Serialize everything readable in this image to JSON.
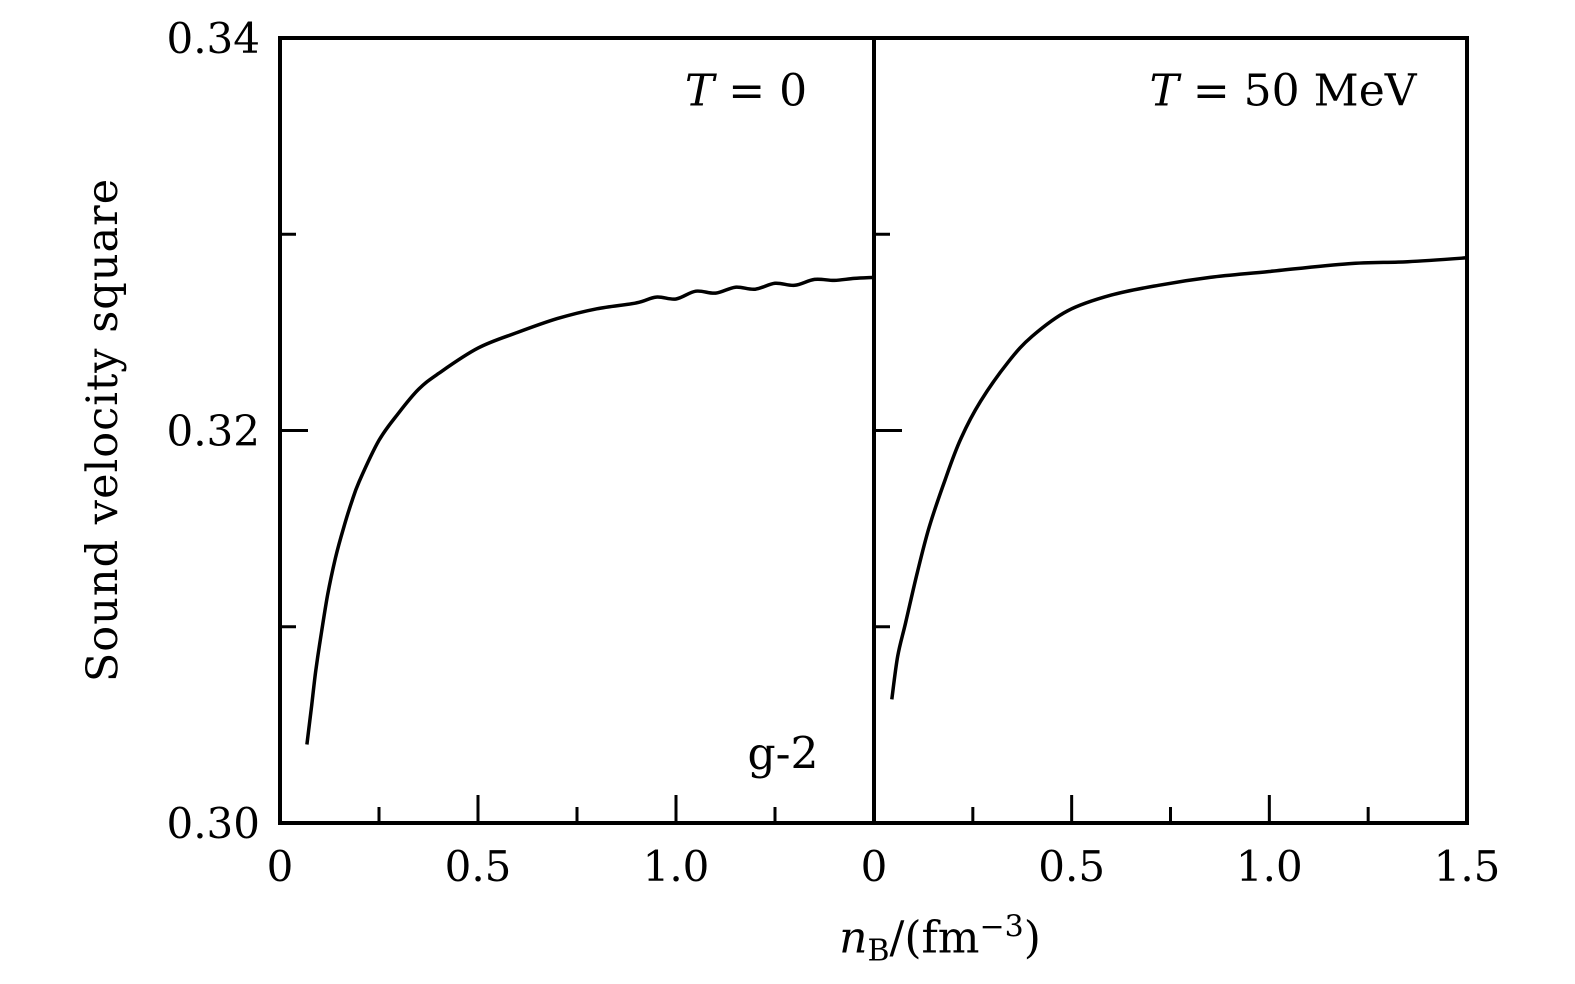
{
  "figure": {
    "background_color": "#ffffff",
    "line_color": "#000000",
    "ylabel": "Sound velocity square",
    "xlabel": {
      "var": "n",
      "sub": "B",
      "mid": "/(fm",
      "sup": "−3",
      "end": ")"
    }
  },
  "chart_data": [
    {
      "type": "line",
      "panel": "left",
      "title": {
        "var": "T",
        "rest": " = 0"
      },
      "annotation": "g-2",
      "xlim": [
        0,
        1.5
      ],
      "ylim": [
        0.3,
        0.34
      ],
      "grid": false,
      "legend": "none",
      "xticks": {
        "major": [
          0,
          0.5,
          1.0
        ],
        "labels": [
          "0",
          "0.5",
          "1.0"
        ],
        "minor": [
          0.25,
          0.75,
          1.25
        ]
      },
      "yticks": {
        "major": [
          0.3,
          0.32,
          0.34
        ],
        "labels": [
          "0.30",
          "0.32",
          "0.34"
        ],
        "minor": [
          0.31,
          0.33
        ]
      },
      "title_x_frac": 0.785,
      "title_y_frac": 0.068,
      "annotation_x_frac": 0.847,
      "annotation_y_frac": 0.913,
      "series": [
        {
          "name": "sound velocity square, T = 0",
          "x": [
            0.068,
            0.08,
            0.09,
            0.1,
            0.12,
            0.14,
            0.16,
            0.18,
            0.2,
            0.25,
            0.3,
            0.35,
            0.4,
            0.5,
            0.6,
            0.7,
            0.8,
            0.9,
            0.95,
            1.0,
            1.05,
            1.1,
            1.15,
            1.2,
            1.25,
            1.3,
            1.35,
            1.4,
            1.45,
            1.5
          ],
          "y": [
            0.304,
            0.306,
            0.3077,
            0.3091,
            0.3116,
            0.3135,
            0.315,
            0.3163,
            0.3174,
            0.3195,
            0.3209,
            0.3221,
            0.3229,
            0.3242,
            0.325,
            0.3257,
            0.3262,
            0.3265,
            0.3268,
            0.3267,
            0.3271,
            0.327,
            0.3273,
            0.3272,
            0.3275,
            0.3274,
            0.3277,
            0.32765,
            0.32775,
            0.3278
          ]
        }
      ]
    },
    {
      "type": "line",
      "panel": "right",
      "title": {
        "var": "T",
        "rest": " = 50 MeV"
      },
      "annotation": "",
      "xlim": [
        0,
        1.5
      ],
      "ylim": [
        0.3,
        0.34
      ],
      "grid": false,
      "legend": "none",
      "xticks": {
        "major": [
          0,
          0.5,
          1.0,
          1.5
        ],
        "labels": [
          "0",
          "0.5",
          "1.0",
          "1.5"
        ],
        "minor": [
          0.25,
          0.75,
          1.25
        ]
      },
      "yticks": {
        "major": [
          0.3,
          0.32,
          0.34
        ],
        "labels": [],
        "minor": [
          0.31,
          0.33
        ]
      },
      "title_x_frac": 0.69,
      "title_y_frac": 0.068,
      "annotation_x_frac": 0,
      "annotation_y_frac": 0,
      "series": [
        {
          "name": "sound velocity square, T = 50 MeV",
          "x": [
            0.045,
            0.06,
            0.08,
            0.11,
            0.14,
            0.18,
            0.22,
            0.27,
            0.34,
            0.4,
            0.49,
            0.6,
            0.72,
            0.85,
            1.0,
            1.2,
            1.35,
            1.5
          ],
          "y": [
            0.3063,
            0.3085,
            0.3102,
            0.3128,
            0.3151,
            0.3175,
            0.3196,
            0.3215,
            0.3235,
            0.3248,
            0.3261,
            0.3269,
            0.3274,
            0.3278,
            0.3281,
            0.3285,
            0.3286,
            0.3288
          ]
        }
      ]
    }
  ]
}
